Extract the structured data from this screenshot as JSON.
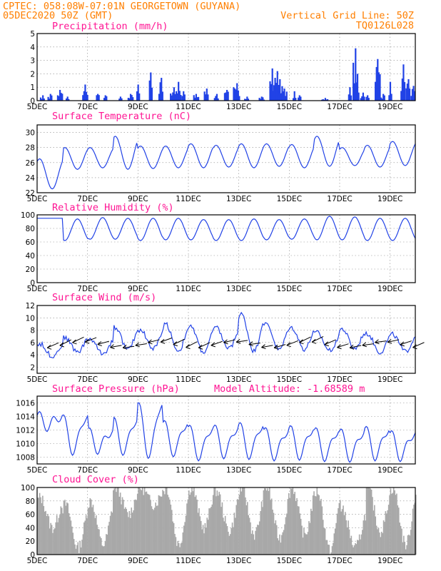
{
  "header": {
    "line1_left": "CPTEC:   058:08W-07:01N  GEORGETOWN (GUYANA)",
    "line2_left": "05DEC2020 50Z (GMT)",
    "line2_right": "Vertical Grid Line: 50Z",
    "line3_right": "TQ0126L028"
  },
  "colors": {
    "series": "#2142e6",
    "bars": "#2142e6",
    "cloud": "#a8a8a8",
    "header": "#ff7f00",
    "title": "#ff1493"
  },
  "x_ticks": [
    "5DEC",
    "7DEC",
    "9DEC",
    "11DEC",
    "13DEC",
    "15DEC",
    "17DEC",
    "19DEC"
  ],
  "chart_data": [
    {
      "type": "bar",
      "title": "Precipitation (mm/h)",
      "ylim": [
        0,
        5
      ],
      "yticks": [
        0,
        1,
        2,
        3,
        4,
        5
      ],
      "x_range_days": [
        5,
        20
      ],
      "events": [
        {
          "day": 5.2,
          "value": 0.4
        },
        {
          "day": 5.5,
          "value": 0.5
        },
        {
          "day": 5.9,
          "value": 0.8
        },
        {
          "day": 6.2,
          "value": 0.3
        },
        {
          "day": 6.9,
          "value": 1.2
        },
        {
          "day": 7.4,
          "value": 0.5
        },
        {
          "day": 7.7,
          "value": 0.4
        },
        {
          "day": 8.3,
          "value": 0.3
        },
        {
          "day": 8.7,
          "value": 0.5
        },
        {
          "day": 9.0,
          "value": 1.2
        },
        {
          "day": 9.5,
          "value": 2.1
        },
        {
          "day": 9.9,
          "value": 1.7
        },
        {
          "day": 10.4,
          "value": 1.0
        },
        {
          "day": 10.6,
          "value": 1.4
        },
        {
          "day": 10.8,
          "value": 0.7
        },
        {
          "day": 11.3,
          "value": 0.5
        },
        {
          "day": 11.7,
          "value": 0.9
        },
        {
          "day": 12.1,
          "value": 0.5
        },
        {
          "day": 12.5,
          "value": 0.8
        },
        {
          "day": 12.9,
          "value": 1.3
        },
        {
          "day": 13.3,
          "value": 0.3
        },
        {
          "day": 13.9,
          "value": 0.3
        },
        {
          "day": 14.3,
          "value": 2.4
        },
        {
          "day": 14.5,
          "value": 2.2
        },
        {
          "day": 14.6,
          "value": 1.6
        },
        {
          "day": 14.8,
          "value": 0.9
        },
        {
          "day": 15.2,
          "value": 0.7
        },
        {
          "day": 15.4,
          "value": 0.4
        },
        {
          "day": 16.4,
          "value": 0.2
        },
        {
          "day": 17.4,
          "value": 1.0
        },
        {
          "day": 17.6,
          "value": 3.9
        },
        {
          "day": 17.7,
          "value": 2.0
        },
        {
          "day": 17.9,
          "value": 0.6
        },
        {
          "day": 18.1,
          "value": 0.4
        },
        {
          "day": 18.5,
          "value": 3.1
        },
        {
          "day": 18.7,
          "value": 0.5
        },
        {
          "day": 19.0,
          "value": 1.4
        },
        {
          "day": 19.5,
          "value": 2.7
        },
        {
          "day": 19.7,
          "value": 1.6
        },
        {
          "day": 19.9,
          "value": 1.1
        }
      ]
    },
    {
      "type": "line",
      "title": "Surface Temperature (nC)",
      "ylim": [
        22,
        31
      ],
      "yticks": [
        22,
        24,
        26,
        28,
        30
      ],
      "x_range_days": [
        5,
        20
      ],
      "daily_min": [
        22.5,
        25.1,
        25.3,
        25.1,
        25.2,
        25.3,
        25.3,
        25.4,
        25.3,
        25.5,
        25.3,
        25.5,
        25.6,
        25.4,
        25.6
      ],
      "daily_max": [
        26.5,
        28.0,
        28.0,
        29.5,
        28.2,
        28.2,
        28.5,
        28.3,
        28.5,
        28.5,
        28.4,
        29.5,
        28.0,
        28.3,
        28.8
      ]
    },
    {
      "type": "line",
      "title": "Relative Humidity (%)",
      "ylim": [
        0,
        100
      ],
      "yticks": [
        0,
        20,
        40,
        60,
        80,
        100
      ],
      "x_range_days": [
        5,
        20
      ],
      "daily_min": [
        95,
        62,
        64,
        64,
        62,
        63,
        63,
        62,
        62,
        63,
        64,
        63,
        63,
        62,
        62
      ],
      "daily_max": [
        95,
        94,
        96,
        95,
        95,
        95,
        93,
        93,
        94,
        93,
        94,
        98,
        97,
        95,
        95
      ]
    },
    {
      "type": "line",
      "title": "Surface Wind (m/s)",
      "ylim": [
        1,
        12
      ],
      "yticks": [
        2,
        4,
        6,
        8,
        10,
        12
      ],
      "x_range_days": [
        5,
        20
      ],
      "daily_min": [
        3.8,
        4.5,
        4.2,
        4.8,
        5.0,
        4.6,
        4.4,
        5.0,
        4.6,
        4.8,
        4.9,
        4.7,
        5.0,
        4.4,
        4.5
      ],
      "daily_max": [
        5.8,
        6.8,
        6.6,
        8.5,
        8.1,
        9.0,
        8.5,
        8.4,
        10.6,
        9.0,
        8.4,
        7.6,
        8.2,
        7.4,
        7.3
      ],
      "arrow_direction": "from east-northeast"
    },
    {
      "type": "line",
      "title": "Surface Pressure (hPa)",
      "annotation": "Model Altitude: -1.68589 m",
      "ylim": [
        1007,
        1017
      ],
      "yticks": [
        1008,
        1010,
        1012,
        1014,
        1016
      ],
      "x_range_days": [
        5,
        20
      ],
      "daily_min": [
        1012.6,
        1009.0,
        1009.2,
        1009.0,
        1008.5,
        1008.8,
        1008.2,
        1008.5,
        1008.4,
        1008.2,
        1008.3,
        1008.1,
        1008.0,
        1008.2,
        1008.1
      ],
      "daily_max": [
        1014.2,
        1014.2,
        1012.0,
        1013.8,
        1016.2,
        1013.3,
        1012.6,
        1012.6,
        1013.0,
        1012.2,
        1012.5,
        1012.2,
        1012.0,
        1012.4,
        1011.7
      ]
    },
    {
      "type": "area",
      "title": "Cloud Cover (%)",
      "ylim": [
        0,
        100
      ],
      "yticks": [
        0,
        20,
        40,
        60,
        80,
        100
      ],
      "x_range_days": [
        5,
        20
      ],
      "daily_low": [
        40,
        10,
        15,
        60,
        75,
        15,
        40,
        35,
        30,
        25,
        30,
        5,
        10,
        35,
        15
      ],
      "daily_high": [
        85,
        75,
        80,
        100,
        100,
        100,
        100,
        95,
        100,
        100,
        100,
        95,
        65,
        100,
        100
      ]
    }
  ]
}
